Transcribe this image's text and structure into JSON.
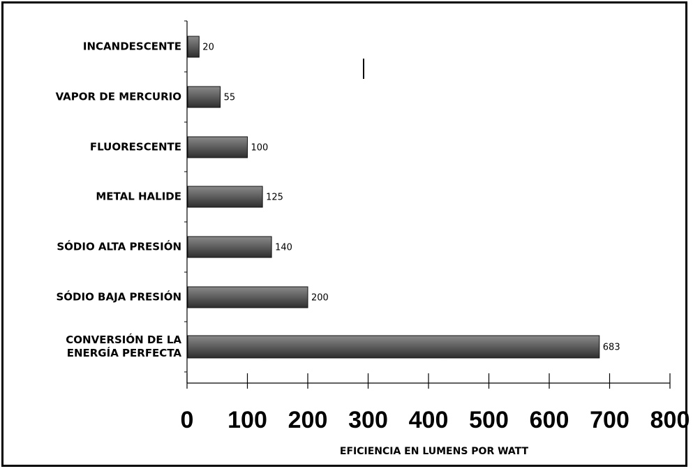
{
  "chart_data": {
    "type": "bar",
    "orientation": "horizontal",
    "categories": [
      "INCANDESCENTE",
      "VAPOR DE MERCURIO",
      "FLUORESCENTE",
      "METAL HALIDE",
      "SÓDIO ALTA PRESIÓN",
      "SÓDIO BAJA PRESIÓN",
      "CONVERSIÓN DE LA ENERGÍA PERFECTA"
    ],
    "category_lines": [
      [
        "INCANDESCENTE"
      ],
      [
        "VAPOR DE MERCURIO"
      ],
      [
        "FLUORESCENTE"
      ],
      [
        "METAL HALIDE"
      ],
      [
        "SÓDIO ALTA PRESIÓN"
      ],
      [
        "SÓDIO BAJA PRESIÓN"
      ],
      [
        "CONVERSIÓN DE LA",
        "ENERGÍA PERFECTA"
      ]
    ],
    "values": [
      20,
      55,
      100,
      125,
      140,
      200,
      683
    ],
    "value_labels": [
      "20",
      "55",
      "100",
      "125",
      "140",
      "200",
      "683"
    ],
    "title": "",
    "xlabel": "EFICIENCIA EN LUMENS POR WATT",
    "ylabel": "",
    "xlim": [
      0,
      800
    ],
    "x_ticks": [
      "0",
      "100",
      "200",
      "300",
      "400",
      "500",
      "600",
      "700",
      "800"
    ],
    "grid": false,
    "legend": "none",
    "bar_color": "#555555",
    "bar_highlight": "#8a8a8a"
  }
}
